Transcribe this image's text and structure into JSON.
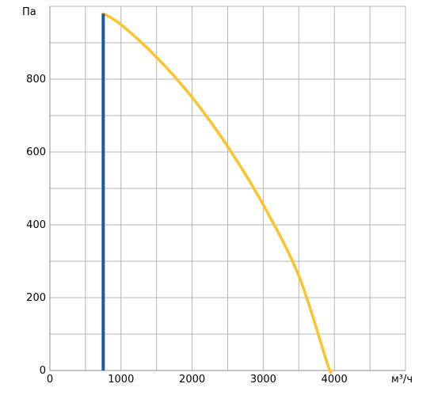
{
  "chart_data": {
    "type": "line",
    "xlabel": "м³/ч",
    "ylabel": "Па",
    "xlim": [
      0,
      5000
    ],
    "ylim": [
      0,
      1000
    ],
    "x_ticks": [
      0,
      1000,
      2000,
      3000,
      4000
    ],
    "y_ticks": [
      0,
      200,
      400,
      600,
      800
    ],
    "x_tick_labels": [
      "0",
      "1000",
      "2000",
      "3000",
      "4000"
    ],
    "y_tick_labels": [
      "0",
      "200",
      "400",
      "600",
      "800"
    ],
    "x_grid_step": 500,
    "y_grid_step": 100,
    "grid": true,
    "series": [
      {
        "kind": "line",
        "color": "#fcc42a",
        "points": [
          [
            750,
            980
          ],
          [
            1000,
            950
          ],
          [
            1500,
            860
          ],
          [
            2000,
            750
          ],
          [
            2500,
            615
          ],
          [
            3000,
            455
          ],
          [
            3500,
            260
          ],
          [
            3900,
            20
          ],
          [
            3950,
            0
          ]
        ]
      },
      {
        "kind": "vline",
        "color": "#1d5a9c",
        "x": 750,
        "y_range": [
          0,
          980
        ]
      }
    ]
  }
}
